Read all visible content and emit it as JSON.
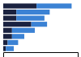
{
  "chart_data": {
    "type": "bar",
    "orientation": "horizontal",
    "stacked": true,
    "tick_labels": false,
    "categories": [
      null,
      null,
      null,
      null,
      null,
      null,
      null,
      null
    ],
    "xlim": [
      0,
      85
    ],
    "series": [
      {
        "color": "#1a2240",
        "values": [
          38,
          15,
          15,
          32,
          10,
          10,
          5,
          3
        ]
      },
      {
        "color": "#3b82d4",
        "values": [
          40,
          38,
          32,
          18,
          26,
          14,
          12,
          9
        ]
      }
    ]
  }
}
